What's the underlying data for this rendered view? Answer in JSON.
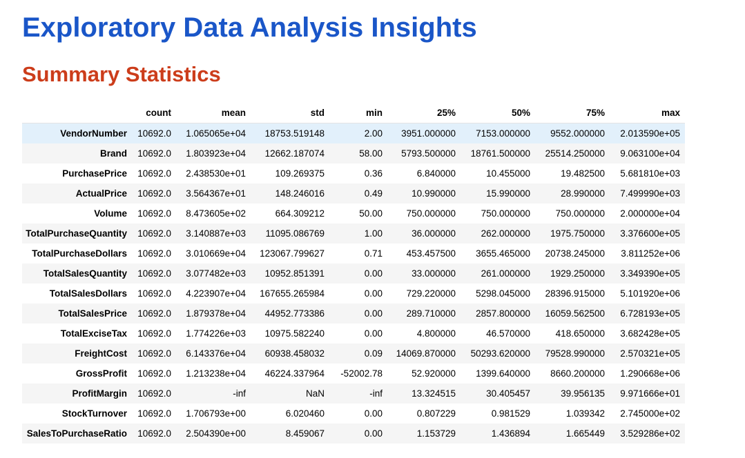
{
  "page": {
    "title": "Exploratory Data Analysis Insights",
    "section_title": "Summary Statistics"
  },
  "colors": {
    "title": "#1a56c8",
    "section_title": "#cc3d1b",
    "row_stripe": "#f5f5f5",
    "row_highlight": "#e2f0fb"
  },
  "table": {
    "columns": [
      "",
      "count",
      "mean",
      "std",
      "min",
      "25%",
      "50%",
      "75%",
      "max"
    ],
    "highlighted_row": 0,
    "rows": [
      {
        "label": "VendorNumber",
        "values": [
          "10692.0",
          "1.065065e+04",
          "18753.519148",
          "2.00",
          "3951.000000",
          "7153.000000",
          "9552.000000",
          "2.013590e+05"
        ]
      },
      {
        "label": "Brand",
        "values": [
          "10692.0",
          "1.803923e+04",
          "12662.187074",
          "58.00",
          "5793.500000",
          "18761.500000",
          "25514.250000",
          "9.063100e+04"
        ]
      },
      {
        "label": "PurchasePrice",
        "values": [
          "10692.0",
          "2.438530e+01",
          "109.269375",
          "0.36",
          "6.840000",
          "10.455000",
          "19.482500",
          "5.681810e+03"
        ]
      },
      {
        "label": "ActualPrice",
        "values": [
          "10692.0",
          "3.564367e+01",
          "148.246016",
          "0.49",
          "10.990000",
          "15.990000",
          "28.990000",
          "7.499990e+03"
        ]
      },
      {
        "label": "Volume",
        "values": [
          "10692.0",
          "8.473605e+02",
          "664.309212",
          "50.00",
          "750.000000",
          "750.000000",
          "750.000000",
          "2.000000e+04"
        ]
      },
      {
        "label": "TotalPurchaseQuantity",
        "values": [
          "10692.0",
          "3.140887e+03",
          "11095.086769",
          "1.00",
          "36.000000",
          "262.000000",
          "1975.750000",
          "3.376600e+05"
        ]
      },
      {
        "label": "TotalPurchaseDollars",
        "values": [
          "10692.0",
          "3.010669e+04",
          "123067.799627",
          "0.71",
          "453.457500",
          "3655.465000",
          "20738.245000",
          "3.811252e+06"
        ]
      },
      {
        "label": "TotalSalesQuantity",
        "values": [
          "10692.0",
          "3.077482e+03",
          "10952.851391",
          "0.00",
          "33.000000",
          "261.000000",
          "1929.250000",
          "3.349390e+05"
        ]
      },
      {
        "label": "TotalSalesDollars",
        "values": [
          "10692.0",
          "4.223907e+04",
          "167655.265984",
          "0.00",
          "729.220000",
          "5298.045000",
          "28396.915000",
          "5.101920e+06"
        ]
      },
      {
        "label": "TotalSalesPrice",
        "values": [
          "10692.0",
          "1.879378e+04",
          "44952.773386",
          "0.00",
          "289.710000",
          "2857.800000",
          "16059.562500",
          "6.728193e+05"
        ]
      },
      {
        "label": "TotalExciseTax",
        "values": [
          "10692.0",
          "1.774226e+03",
          "10975.582240",
          "0.00",
          "4.800000",
          "46.570000",
          "418.650000",
          "3.682428e+05"
        ]
      },
      {
        "label": "FreightCost",
        "values": [
          "10692.0",
          "6.143376e+04",
          "60938.458032",
          "0.09",
          "14069.870000",
          "50293.620000",
          "79528.990000",
          "2.570321e+05"
        ]
      },
      {
        "label": "GrossProfit",
        "values": [
          "10692.0",
          "1.213238e+04",
          "46224.337964",
          "-52002.78",
          "52.920000",
          "1399.640000",
          "8660.200000",
          "1.290668e+06"
        ]
      },
      {
        "label": "ProfitMargin",
        "values": [
          "10692.0",
          "-inf",
          "NaN",
          "-inf",
          "13.324515",
          "30.405457",
          "39.956135",
          "9.971666e+01"
        ]
      },
      {
        "label": "StockTurnover",
        "values": [
          "10692.0",
          "1.706793e+00",
          "6.020460",
          "0.00",
          "0.807229",
          "0.981529",
          "1.039342",
          "2.745000e+02"
        ]
      },
      {
        "label": "SalesToPurchaseRatio",
        "values": [
          "10692.0",
          "2.504390e+00",
          "8.459067",
          "0.00",
          "1.153729",
          "1.436894",
          "1.665449",
          "3.529286e+02"
        ]
      }
    ]
  }
}
